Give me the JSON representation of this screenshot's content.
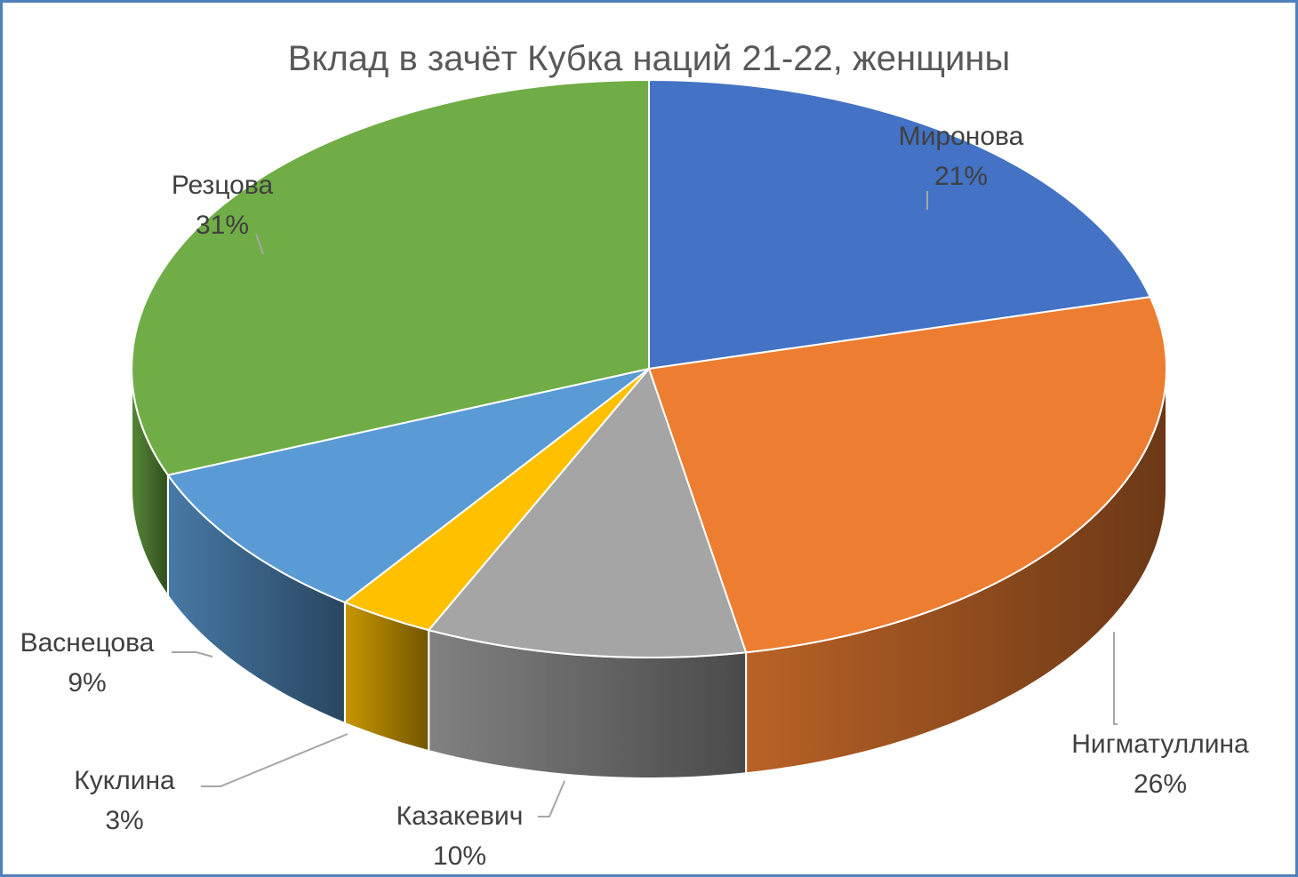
{
  "chart_data": {
    "type": "pie",
    "title": "Вклад в зачёт Кубка наций 21-22, женщины",
    "slices": [
      {
        "name": "Миронова",
        "value": 21,
        "label": "21%",
        "color": "#4472c4"
      },
      {
        "name": "Нигматуллина",
        "value": 26,
        "label": "26%",
        "color": "#ed7d31"
      },
      {
        "name": "Казакевич",
        "value": 10,
        "label": "10%",
        "color": "#a5a5a5"
      },
      {
        "name": "Куклина",
        "value": 3,
        "label": "3%",
        "color": "#ffc000"
      },
      {
        "name": "Васнецова",
        "value": 9,
        "label": "9%",
        "color": "#5b9bd5"
      },
      {
        "name": "Резцова",
        "value": 31,
        "label": "31%",
        "color": "#70ad47"
      }
    ],
    "legend": "none",
    "data_labels": "outside with leader lines",
    "style": "3d"
  }
}
